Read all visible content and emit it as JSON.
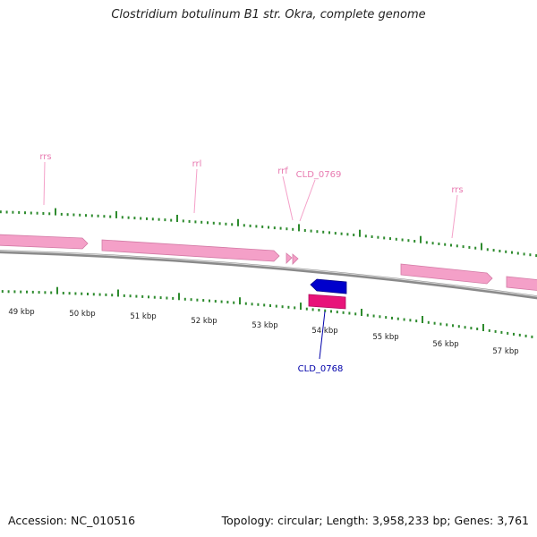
{
  "title": "Clostridium botulinum B1 str. Okra, complete genome",
  "footer": {
    "accession": "Accession: NC_010516",
    "summary": "Topology: circular; Length: 3,958,233 bp; Genes: 3,761"
  },
  "colors": {
    "backbone": "#8a8a8a",
    "tick": "#2e8b2e",
    "rna_feature": "#f4a0c8",
    "rna_label": "#e87ab0",
    "gene_forward": "#0000cc",
    "gene_reverse": "#e8147a",
    "gene_label": "#0000aa"
  },
  "scale_labels": [
    "49 kbp",
    "50 kbp",
    "51 kbp",
    "52 kbp",
    "53 kbp",
    "54 kbp",
    "55 kbp",
    "56 kbp",
    "57 kbp"
  ],
  "upper_labels": [
    {
      "text": "rrs"
    },
    {
      "text": "rrl"
    },
    {
      "text": "rrf"
    },
    {
      "text": "CLD_0769"
    },
    {
      "text": "rrs"
    }
  ],
  "lower_labels": [
    {
      "text": "CLD_0768"
    }
  ]
}
